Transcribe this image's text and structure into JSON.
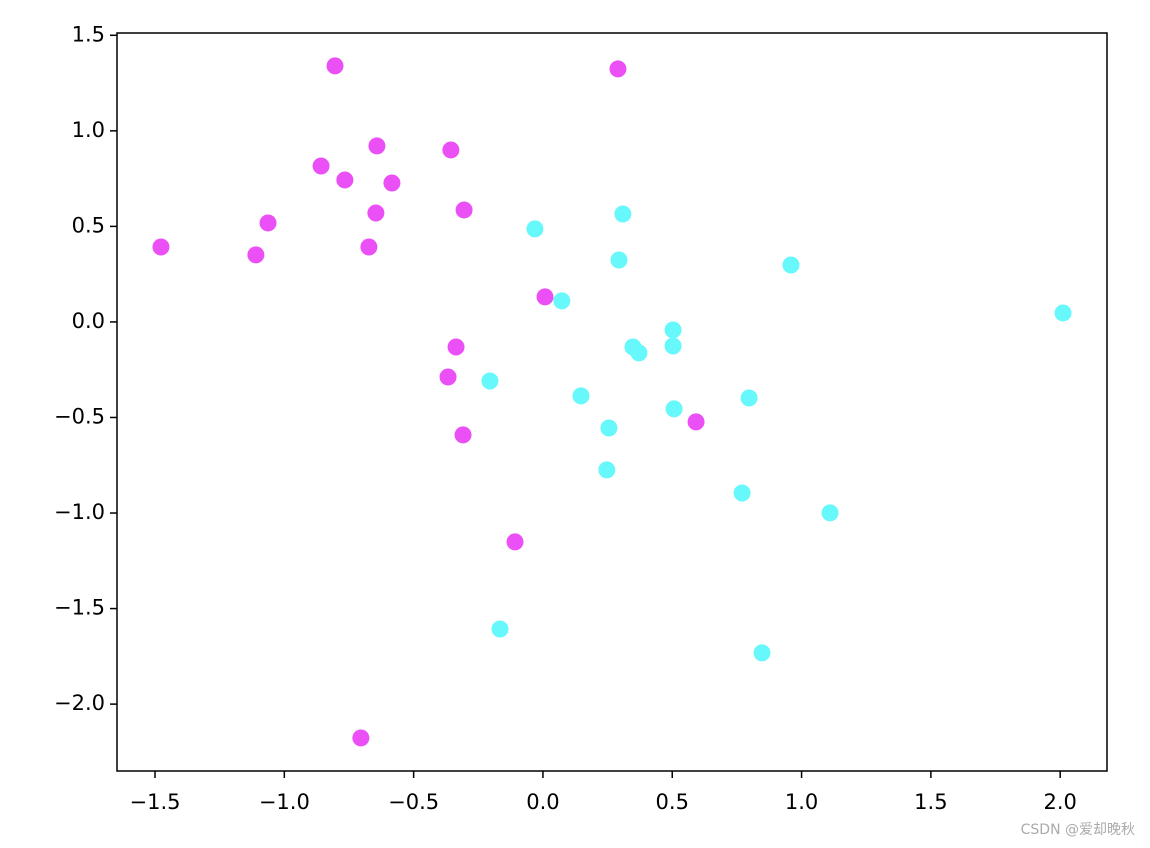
{
  "chart_data": {
    "type": "scatter",
    "xlim": [
      -1.647,
      2.181
    ],
    "ylim": [
      -2.35,
      1.512
    ],
    "xticks": [
      {
        "value": -1.5,
        "label": "−1.5"
      },
      {
        "value": -1.0,
        "label": "−1.0"
      },
      {
        "value": -0.5,
        "label": "−0.5"
      },
      {
        "value": 0,
        "label": "0.0"
      },
      {
        "value": 0.5,
        "label": "0.5"
      },
      {
        "value": 1.0,
        "label": "1.0"
      },
      {
        "value": 1.5,
        "label": "1.5"
      },
      {
        "value": 2.0,
        "label": "2.0"
      }
    ],
    "yticks": [
      {
        "value": 1.5,
        "label": "1.5"
      },
      {
        "value": 1.0,
        "label": "1.0"
      },
      {
        "value": 0.5,
        "label": "0.5"
      },
      {
        "value": 0,
        "label": "0.0"
      },
      {
        "value": -0.5,
        "label": "−0.5"
      },
      {
        "value": -1.0,
        "label": "−1.0"
      },
      {
        "value": -1.5,
        "label": "−1.5"
      },
      {
        "value": -2.0,
        "label": "−2.0"
      }
    ],
    "grid": false,
    "series": [
      {
        "color": "#ea50f6",
        "x": [
          -0.804,
          0.29,
          -0.642,
          -0.356,
          -0.858,
          -0.766,
          -0.584,
          -1.063,
          -0.646,
          -0.305,
          -1.477,
          -1.11,
          -0.673,
          0.008,
          -0.336,
          -0.367,
          -0.309,
          0.592,
          -0.108,
          -0.704
        ],
        "y": [
          1.34,
          1.324,
          0.921,
          0.9,
          0.816,
          0.743,
          0.727,
          0.518,
          0.57,
          0.586,
          0.392,
          0.351,
          0.392,
          0.131,
          -0.131,
          -0.288,
          -0.591,
          -0.523,
          -1.151,
          -2.177
        ]
      },
      {
        "color": "#66f8fb",
        "x": [
          -0.031,
          0.309,
          0.294,
          0.959,
          0.073,
          2.011,
          0.503,
          0.503,
          0.348,
          0.371,
          -0.205,
          0.147,
          0.507,
          0.797,
          0.255,
          0.247,
          0.77,
          1.11,
          -0.166,
          0.847
        ],
        "y": [
          0.487,
          0.565,
          0.324,
          0.298,
          0.11,
          0.047,
          -0.042,
          -0.126,
          -0.131,
          -0.162,
          -0.309,
          -0.387,
          -0.455,
          -0.398,
          -0.555,
          -0.774,
          -0.895,
          -0.999,
          -1.607,
          -1.732
        ]
      }
    ],
    "watermark": "CSDN @爱却晚秋"
  }
}
